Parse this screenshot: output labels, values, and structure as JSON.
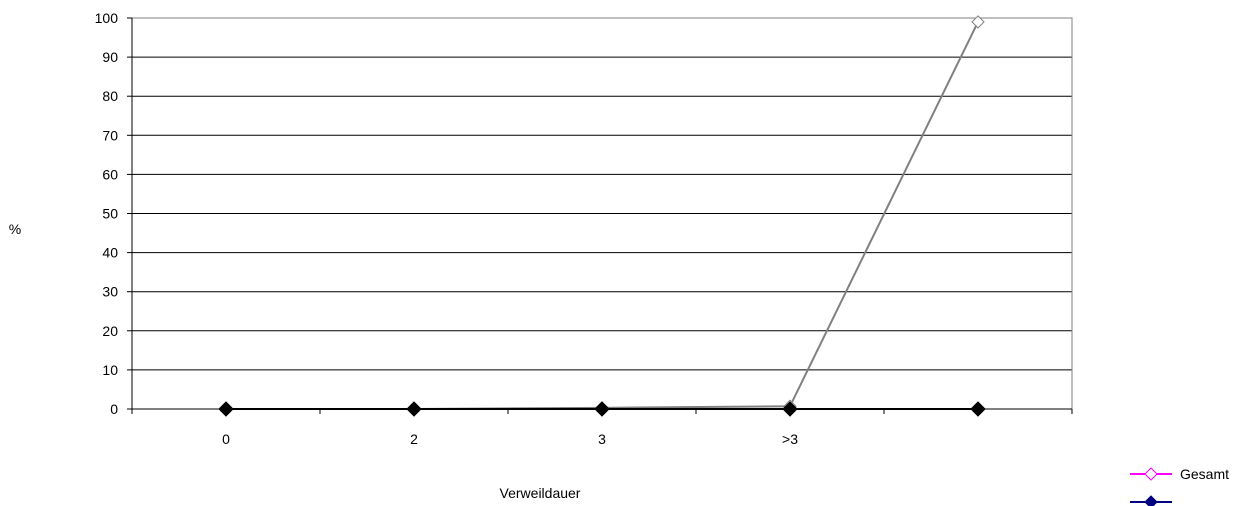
{
  "chart_data": {
    "type": "line",
    "categories": [
      "0",
      "2",
      "3",
      ">3",
      ""
    ],
    "series": [
      {
        "name": "Gesamt",
        "values": [
          0,
          0,
          0.3,
          0.7,
          99
        ],
        "color": "#ff00ff",
        "line_color": "#808080",
        "marker": "open-diamond"
      },
      {
        "name": "",
        "values": [
          0,
          0,
          0,
          0,
          0
        ],
        "color": "#000080",
        "line_color": "#000000",
        "marker": "filled-diamond"
      }
    ],
    "xlabel": "Verweildauer",
    "ylabel": "%",
    "ylim": [
      0,
      100
    ],
    "yticks": [
      0,
      10,
      20,
      30,
      40,
      50,
      60,
      70,
      80,
      90,
      100
    ],
    "grid": true,
    "legend_position": "bottom-right"
  }
}
